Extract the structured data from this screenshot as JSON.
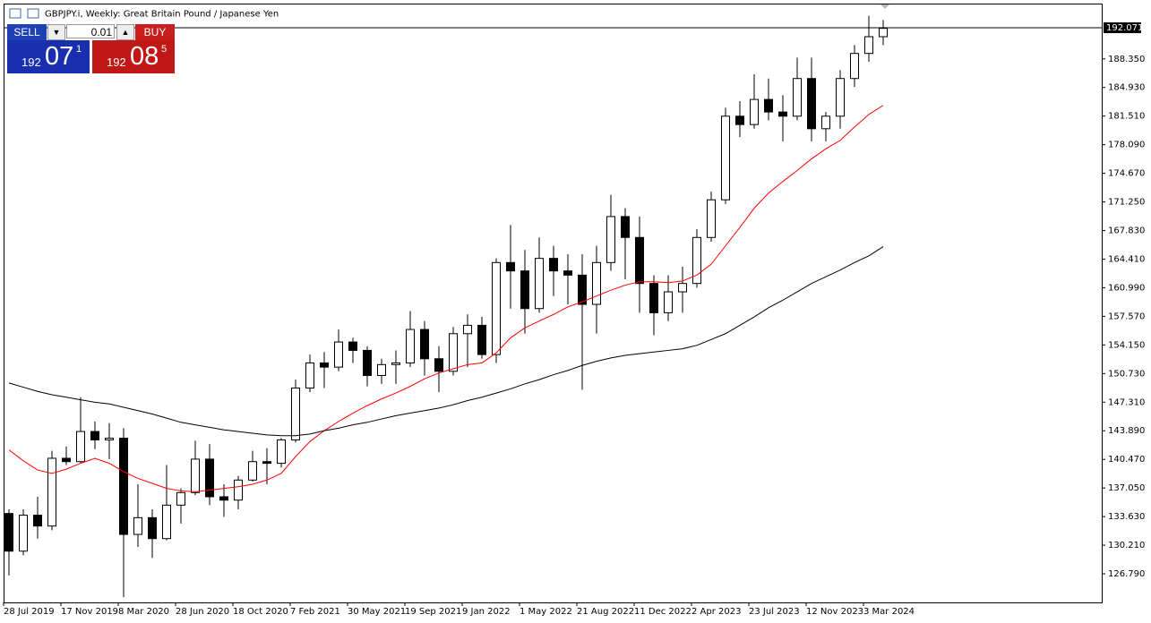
{
  "chart_data": {
    "type": "candlestick",
    "title": "GBPJPY.i, Weekly:  Great Britain Pound / Japanese Yen",
    "categories": [
      "28 Jul 2019",
      null,
      null,
      null,
      "17 Nov 2019",
      null,
      null,
      null,
      "8 Mar 2020",
      null,
      null,
      null,
      "28 Jun 2020",
      null,
      null,
      null,
      "18 Oct 2020",
      null,
      null,
      null,
      "7 Feb 2021",
      null,
      null,
      null,
      "30 May 2021",
      null,
      null,
      null,
      "19 Sep 2021",
      null,
      null,
      null,
      "9 Jan 2022",
      null,
      null,
      null,
      "1 May 2022",
      null,
      null,
      null,
      "21 Aug 2022",
      null,
      null,
      null,
      "11 Dec 2022",
      null,
      null,
      null,
      "2 Apr 2023",
      null,
      null,
      null,
      "23 Jul 2023",
      null,
      null,
      null,
      "12 Nov 2023",
      null,
      null,
      null,
      "3 Mar 2024",
      null
    ],
    "open": [
      134.0,
      129.5,
      133.8,
      132.5,
      140.6,
      140.2,
      143.8,
      142.8,
      143.0,
      131.5,
      133.5,
      131.0,
      135.0,
      136.5,
      140.5,
      136.0,
      135.6,
      138.0,
      140.2,
      140.0,
      142.8,
      149.0,
      152.0,
      151.5,
      154.5,
      153.5,
      150.5,
      151.8,
      152.0,
      156.0,
      152.5,
      151.0,
      155.5,
      156.5,
      153.0,
      164.0,
      163.0,
      158.5,
      164.5,
      163.0,
      162.5,
      159.0,
      164.0,
      169.5,
      167.0,
      161.5,
      158.0,
      160.5,
      161.5,
      167.0,
      171.5,
      181.5,
      180.5,
      183.5,
      182.0,
      181.5,
      186.0,
      180.0,
      181.5,
      186.0,
      189.0,
      191.0
    ],
    "high": [
      134.5,
      134.5,
      136.0,
      141.5,
      142.0,
      147.9,
      145.0,
      144.8,
      144.2,
      137.5,
      134.5,
      139.8,
      137.0,
      142.7,
      142.3,
      137.5,
      138.5,
      141.5,
      141.8,
      143.0,
      150.0,
      153.0,
      153.3,
      156.0,
      155.0,
      154.0,
      152.5,
      153.5,
      158.2,
      157.0,
      154.0,
      156.3,
      157.8,
      157.5,
      164.5,
      168.5,
      165.5,
      167.0,
      166.0,
      165.0,
      165.0,
      166.0,
      172.1,
      170.5,
      169.5,
      162.5,
      162.5,
      163.5,
      168.0,
      172.5,
      182.5,
      183.3,
      186.5,
      186.0,
      184.0,
      188.5,
      188.5,
      182.0,
      187.0,
      190.0,
      193.5,
      193.0
    ],
    "low": [
      126.6,
      129.0,
      131.0,
      132.0,
      139.8,
      140.0,
      141.7,
      140.5,
      124.0,
      130.0,
      128.7,
      130.8,
      132.8,
      136.2,
      135.0,
      133.6,
      134.5,
      137.8,
      137.5,
      139.5,
      142.5,
      148.5,
      149.0,
      151.0,
      152.0,
      149.2,
      149.5,
      149.5,
      151.5,
      150.5,
      148.5,
      150.5,
      151.5,
      152.5,
      152.0,
      158.5,
      155.5,
      158.0,
      160.0,
      159.0,
      148.8,
      155.5,
      163.0,
      162.0,
      158.0,
      155.3,
      157.0,
      158.0,
      161.0,
      166.5,
      171.0,
      179.0,
      180.0,
      181.0,
      178.5,
      181.0,
      178.5,
      178.5,
      180.0,
      185.0,
      188.0,
      190.0
    ],
    "close": [
      129.5,
      133.8,
      132.5,
      140.6,
      140.2,
      143.8,
      142.8,
      143.0,
      131.5,
      133.5,
      131.0,
      135.0,
      136.5,
      140.5,
      136.0,
      135.6,
      138.0,
      140.2,
      140.0,
      142.8,
      149.0,
      152.0,
      151.5,
      154.5,
      153.5,
      150.5,
      151.8,
      152.0,
      156.0,
      152.5,
      151.0,
      155.5,
      156.5,
      153.0,
      164.0,
      163.0,
      158.5,
      164.5,
      163.0,
      162.5,
      159.0,
      164.0,
      169.5,
      167.0,
      161.5,
      158.0,
      160.5,
      161.5,
      167.0,
      171.5,
      181.5,
      180.5,
      183.5,
      182.0,
      181.5,
      186.0,
      180.0,
      181.5,
      186.0,
      189.0,
      191.0,
      192.0
    ],
    "lines": [
      {
        "color": "#ff0000",
        "values": [
          141.6,
          140.3,
          139.2,
          138.8,
          139.3,
          140.0,
          140.6,
          140.0,
          139.0,
          138.2,
          137.6,
          137.0,
          136.7,
          136.6,
          136.8,
          137.0,
          137.2,
          137.5,
          138.0,
          138.8,
          140.8,
          142.6,
          143.9,
          145.0,
          146.0,
          146.9,
          147.7,
          148.4,
          149.2,
          150.1,
          150.8,
          151.3,
          151.8,
          152.0,
          153.2,
          155.0,
          156.2,
          157.0,
          157.8,
          158.7,
          159.3,
          160.0,
          160.7,
          161.3,
          161.7,
          161.7,
          161.6,
          161.8,
          162.5,
          163.8,
          166.0,
          168.2,
          170.5,
          172.3,
          173.7,
          175.0,
          176.4,
          177.6,
          178.6,
          180.2,
          181.7,
          182.8
        ]
      },
      {
        "color": "#000000",
        "values": [
          149.6,
          149.1,
          148.6,
          148.2,
          147.9,
          147.6,
          147.3,
          147.1,
          146.7,
          146.3,
          145.9,
          145.4,
          144.9,
          144.6,
          144.3,
          144.0,
          143.8,
          143.6,
          143.4,
          143.3,
          143.3,
          143.5,
          143.9,
          144.2,
          144.6,
          144.9,
          145.3,
          145.7,
          146.0,
          146.3,
          146.6,
          147.0,
          147.5,
          147.9,
          148.4,
          148.9,
          149.5,
          150.0,
          150.6,
          151.1,
          151.7,
          152.2,
          152.6,
          152.9,
          153.1,
          153.3,
          153.5,
          153.7,
          154.1,
          154.8,
          155.5,
          156.5,
          157.5,
          158.6,
          159.5,
          160.5,
          161.5,
          162.3,
          163.1,
          164.0,
          164.8,
          165.9
        ]
      }
    ],
    "last_price": 192.071,
    "ylim": [
      123.37,
      194.96
    ],
    "yticks": [
      {
        "value": 126.79,
        "label": "126.790"
      },
      {
        "value": 130.21,
        "label": "130.210"
      },
      {
        "value": 133.63,
        "label": "133.630"
      },
      {
        "value": 137.05,
        "label": "137.050"
      },
      {
        "value": 140.47,
        "label": "140.470"
      },
      {
        "value": 143.89,
        "label": "143.890"
      },
      {
        "value": 147.31,
        "label": "147.310"
      },
      {
        "value": 150.73,
        "label": "150.730"
      },
      {
        "value": 154.15,
        "label": "154.150"
      },
      {
        "value": 157.57,
        "label": "157.570"
      },
      {
        "value": 160.99,
        "label": "160.990"
      },
      {
        "value": 164.41,
        "label": "164.410"
      },
      {
        "value": 167.83,
        "label": "167.830"
      },
      {
        "value": 171.25,
        "label": "171.250"
      },
      {
        "value": 174.67,
        "label": "174.670"
      },
      {
        "value": 178.09,
        "label": "178.090"
      },
      {
        "value": 181.51,
        "label": "181.510"
      },
      {
        "value": 184.93,
        "label": "184.930"
      },
      {
        "value": 188.35,
        "label": "188.350"
      }
    ],
    "grid": false
  },
  "trade_panel": {
    "sell": "SELL",
    "buy": "BUY",
    "lot": "0.01",
    "bid": {
      "big": "192",
      "pips": "07",
      "point": "1"
    },
    "ask": {
      "big": "192",
      "pips": "08",
      "point": "5"
    }
  }
}
